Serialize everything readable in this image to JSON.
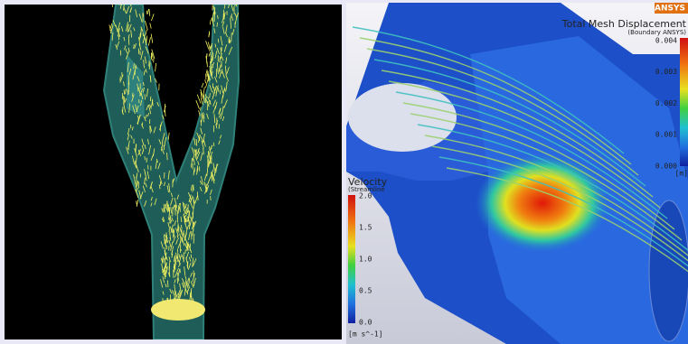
{
  "right_panel": {
    "brand": "ANSYS",
    "displacement_legend": {
      "title": "Total Mesh Displacement",
      "subtitle": "(Boundary ANSYS)",
      "ticks": [
        "0.004",
        "0.003",
        "0.002",
        "0.001",
        "0.000"
      ],
      "unit": "[m]"
    },
    "velocity_legend": {
      "title": "Velocity",
      "subtitle": "(Streamline",
      "ticks": [
        "2.0",
        "1.5",
        "1.0",
        "0.5",
        "0.0"
      ],
      "unit": "[m s^-1]"
    }
  }
}
